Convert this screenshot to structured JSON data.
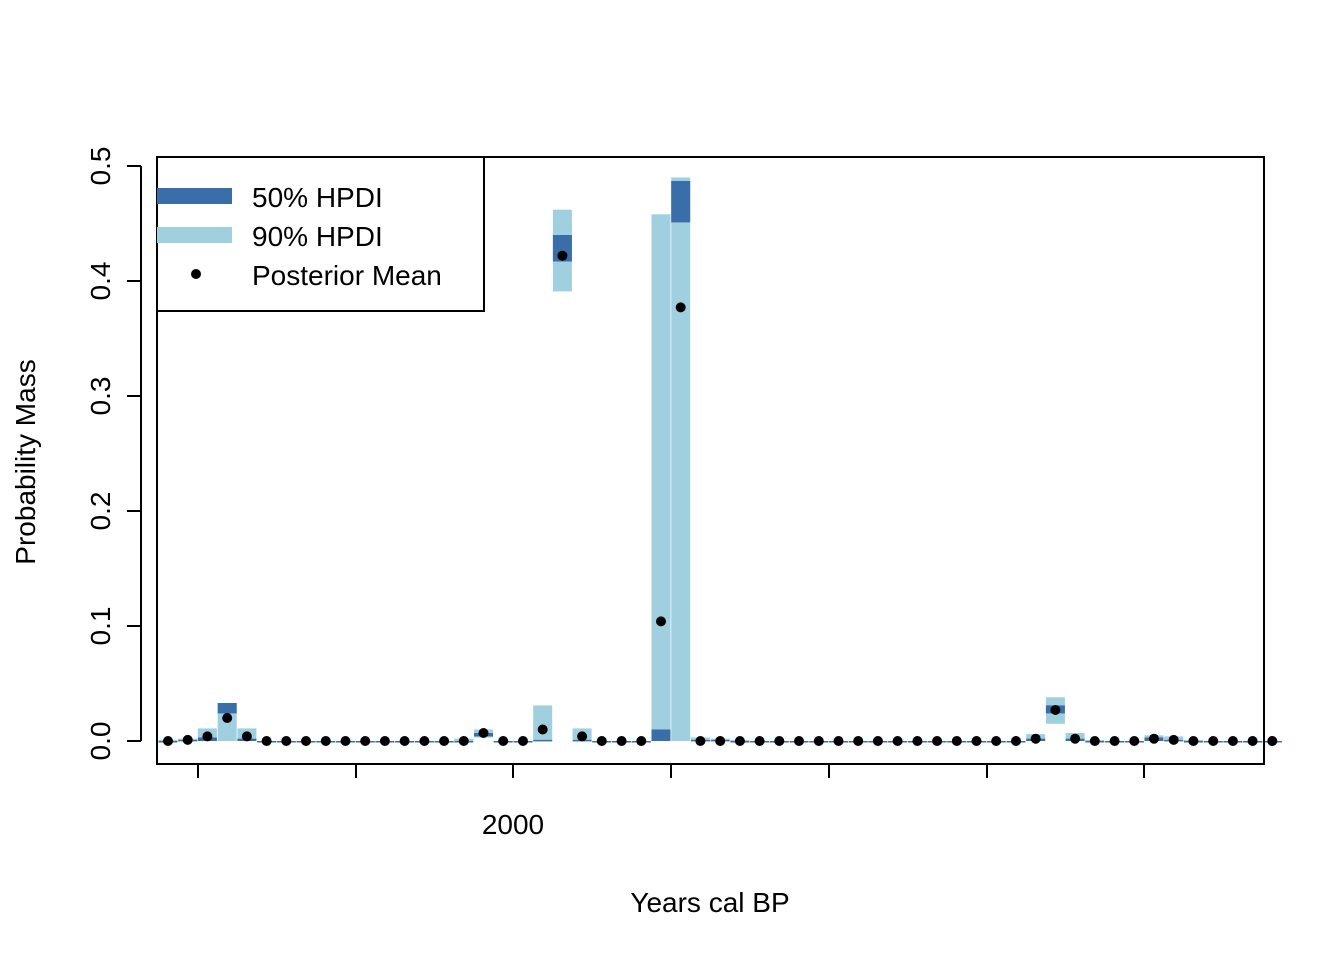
{
  "chart_data": {
    "type": "bar",
    "title": "",
    "xlabel": "Years cal BP",
    "ylabel": "Probability Mass",
    "ylim": [
      0,
      0.5
    ],
    "yticks": [
      "0.0",
      "0.1",
      "0.2",
      "0.3",
      "0.4",
      "0.5"
    ],
    "xtick_labels": [
      "",
      "",
      "2000",
      "",
      "",
      "",
      "",
      "",
      ""
    ],
    "legend": {
      "position": "top-left",
      "entries": [
        {
          "label": "50% HPDI",
          "color": "#3a6ea8"
        },
        {
          "label": "90% HPDI",
          "color": "#a0d0e0"
        },
        {
          "label": "Posterior Mean",
          "color": "#000000"
        }
      ]
    },
    "colors": {
      "hpdi50": "#3a6ea8",
      "hpdi90": "#a0d0e0",
      "mean": "#000000"
    },
    "bins": [
      {
        "mean": 0,
        "hpdi90": [
          0,
          0.001
        ],
        "hpdi50": [
          0,
          0
        ]
      },
      {
        "mean": 0.001,
        "hpdi90": [
          0,
          0.002
        ],
        "hpdi50": [
          0,
          0.001
        ]
      },
      {
        "mean": 0.004,
        "hpdi90": [
          0,
          0.011
        ],
        "hpdi50": [
          0,
          0.003
        ]
      },
      {
        "mean": 0.02,
        "hpdi90": [
          0,
          0.033
        ],
        "hpdi50": [
          0.024,
          0.033
        ]
      },
      {
        "mean": 0.004,
        "hpdi90": [
          0,
          0.011
        ],
        "hpdi50": [
          0,
          0.002
        ]
      },
      {
        "mean": 0,
        "hpdi90": [
          0,
          0
        ],
        "hpdi50": [
          0,
          0
        ]
      },
      {
        "mean": 0,
        "hpdi90": [
          0,
          0
        ],
        "hpdi50": [
          0,
          0
        ]
      },
      {
        "mean": 0,
        "hpdi90": [
          0,
          0
        ],
        "hpdi50": [
          0,
          0
        ]
      },
      {
        "mean": 0,
        "hpdi90": [
          0,
          0
        ],
        "hpdi50": [
          0,
          0
        ]
      },
      {
        "mean": 0,
        "hpdi90": [
          0,
          0
        ],
        "hpdi50": [
          0,
          0
        ]
      },
      {
        "mean": 0,
        "hpdi90": [
          0,
          0
        ],
        "hpdi50": [
          0,
          0
        ]
      },
      {
        "mean": 0,
        "hpdi90": [
          0,
          0
        ],
        "hpdi50": [
          0,
          0
        ]
      },
      {
        "mean": 0,
        "hpdi90": [
          0,
          0
        ],
        "hpdi50": [
          0,
          0
        ]
      },
      {
        "mean": 0,
        "hpdi90": [
          0,
          0
        ],
        "hpdi50": [
          0,
          0
        ]
      },
      {
        "mean": 0,
        "hpdi90": [
          0,
          0
        ],
        "hpdi50": [
          0,
          0
        ]
      },
      {
        "mean": 0,
        "hpdi90": [
          0,
          0.002
        ],
        "hpdi50": [
          0,
          0
        ]
      },
      {
        "mean": 0.007,
        "hpdi90": [
          0.003,
          0.01
        ],
        "hpdi50": [
          0.004,
          0.007
        ]
      },
      {
        "mean": 0,
        "hpdi90": [
          0,
          0
        ],
        "hpdi50": [
          0,
          0
        ]
      },
      {
        "mean": 0,
        "hpdi90": [
          0,
          0
        ],
        "hpdi50": [
          0,
          0
        ]
      },
      {
        "mean": 0.01,
        "hpdi90": [
          0,
          0.031
        ],
        "hpdi50": [
          0,
          0.001
        ]
      },
      {
        "mean": 0.422,
        "hpdi90": [
          0.391,
          0.462
        ],
        "hpdi50": [
          0.417,
          0.44
        ]
      },
      {
        "mean": 0.004,
        "hpdi90": [
          0,
          0.011
        ],
        "hpdi50": [
          0,
          0.001
        ]
      },
      {
        "mean": 0,
        "hpdi90": [
          0,
          0
        ],
        "hpdi50": [
          0,
          0
        ]
      },
      {
        "mean": 0,
        "hpdi90": [
          0,
          0
        ],
        "hpdi50": [
          0,
          0
        ]
      },
      {
        "mean": 0,
        "hpdi90": [
          0,
          0
        ],
        "hpdi50": [
          0,
          0
        ]
      },
      {
        "mean": 0.104,
        "hpdi90": [
          0,
          0.458
        ],
        "hpdi50": [
          0,
          0.01
        ]
      },
      {
        "mean": 0.377,
        "hpdi90": [
          0,
          0.49
        ],
        "hpdi50": [
          0.451,
          0.487
        ]
      },
      {
        "mean": 0,
        "hpdi90": [
          0,
          0.003
        ],
        "hpdi50": [
          0,
          0.001
        ]
      },
      {
        "mean": 0,
        "hpdi90": [
          0,
          0.002
        ],
        "hpdi50": [
          0,
          0.001
        ]
      },
      {
        "mean": 0,
        "hpdi90": [
          0,
          0.001
        ],
        "hpdi50": [
          0,
          0
        ]
      },
      {
        "mean": 0,
        "hpdi90": [
          0,
          0
        ],
        "hpdi50": [
          0,
          0
        ]
      },
      {
        "mean": 0,
        "hpdi90": [
          0,
          0
        ],
        "hpdi50": [
          0,
          0
        ]
      },
      {
        "mean": 0,
        "hpdi90": [
          0,
          0
        ],
        "hpdi50": [
          0,
          0
        ]
      },
      {
        "mean": 0,
        "hpdi90": [
          0,
          0
        ],
        "hpdi50": [
          0,
          0
        ]
      },
      {
        "mean": 0,
        "hpdi90": [
          0,
          0
        ],
        "hpdi50": [
          0,
          0
        ]
      },
      {
        "mean": 0,
        "hpdi90": [
          0,
          0
        ],
        "hpdi50": [
          0,
          0
        ]
      },
      {
        "mean": 0,
        "hpdi90": [
          0,
          0
        ],
        "hpdi50": [
          0,
          0
        ]
      },
      {
        "mean": 0,
        "hpdi90": [
          0,
          0
        ],
        "hpdi50": [
          0,
          0
        ]
      },
      {
        "mean": 0,
        "hpdi90": [
          0,
          0
        ],
        "hpdi50": [
          0,
          0
        ]
      },
      {
        "mean": 0,
        "hpdi90": [
          0,
          0
        ],
        "hpdi50": [
          0,
          0
        ]
      },
      {
        "mean": 0,
        "hpdi90": [
          0,
          0
        ],
        "hpdi50": [
          0,
          0
        ]
      },
      {
        "mean": 0,
        "hpdi90": [
          0,
          0
        ],
        "hpdi50": [
          0,
          0
        ]
      },
      {
        "mean": 0,
        "hpdi90": [
          0,
          0
        ],
        "hpdi50": [
          0,
          0
        ]
      },
      {
        "mean": 0,
        "hpdi90": [
          0,
          0
        ],
        "hpdi50": [
          0,
          0
        ]
      },
      {
        "mean": 0.002,
        "hpdi90": [
          0,
          0.006
        ],
        "hpdi50": [
          0,
          0.002
        ]
      },
      {
        "mean": 0.027,
        "hpdi90": [
          0.015,
          0.038
        ],
        "hpdi50": [
          0.024,
          0.031
        ]
      },
      {
        "mean": 0.002,
        "hpdi90": [
          0,
          0.007
        ],
        "hpdi50": [
          0,
          0.002
        ]
      },
      {
        "mean": 0,
        "hpdi90": [
          0,
          0.001
        ],
        "hpdi50": [
          0,
          0
        ]
      },
      {
        "mean": 0,
        "hpdi90": [
          0,
          0
        ],
        "hpdi50": [
          0,
          0
        ]
      },
      {
        "mean": 0,
        "hpdi90": [
          0,
          0
        ],
        "hpdi50": [
          0,
          0
        ]
      },
      {
        "mean": 0.002,
        "hpdi90": [
          0,
          0.005
        ],
        "hpdi50": [
          0,
          0.003
        ]
      },
      {
        "mean": 0.001,
        "hpdi90": [
          0,
          0.004
        ],
        "hpdi50": [
          0,
          0.001
        ]
      },
      {
        "mean": 0,
        "hpdi90": [
          0,
          0.001
        ],
        "hpdi50": [
          0,
          0
        ]
      },
      {
        "mean": 0,
        "hpdi90": [
          0,
          0
        ],
        "hpdi50": [
          0,
          0
        ]
      },
      {
        "mean": 0,
        "hpdi90": [
          0,
          0
        ],
        "hpdi50": [
          0,
          0
        ]
      },
      {
        "mean": 0,
        "hpdi90": [
          0,
          0
        ],
        "hpdi50": [
          0,
          0
        ]
      },
      {
        "mean": 0,
        "hpdi90": [
          0,
          0
        ],
        "hpdi50": [
          0,
          0
        ]
      }
    ]
  }
}
